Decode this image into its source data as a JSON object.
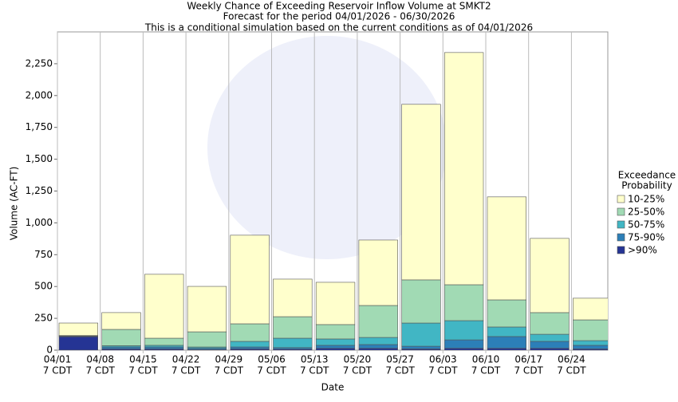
{
  "chart_data": {
    "type": "stacked_bar",
    "title": "Weekly Chance of Exceeding Reservoir Inflow Volume at SMKT2",
    "subtitle": [
      "Forecast for the period 04/01/2026 - 06/30/2026",
      "This is a conditional simulation based on the current conditions as of 04/01/2026"
    ],
    "xlabel": "Date",
    "ylabel": "Volume (AC-FT)",
    "categories": [
      "04/01",
      "04/08",
      "04/15",
      "04/22",
      "04/29",
      "05/06",
      "05/13",
      "05/20",
      "05/27",
      "06/03",
      "06/10",
      "06/17",
      "06/24"
    ],
    "category_sublabel": "7 CDT",
    "legend_title": [
      "Exceedance",
      "Probability"
    ],
    "series": [
      {
        "name": ">90%",
        "color": "#253494",
        "values": [
          105,
          10,
          10,
          5,
          10,
          8,
          15,
          15,
          10,
          15,
          15,
          15,
          10
        ]
      },
      {
        "name": "75-90%",
        "color": "#2c7fb8",
        "values": [
          5,
          15,
          15,
          10,
          15,
          12,
          23,
          29,
          21,
          66,
          92,
          54,
          28
        ]
      },
      {
        "name": "50-75%",
        "color": "#41b6c4",
        "values": [
          3,
          10,
          13,
          10,
          44,
          74,
          50,
          56,
          182,
          151,
          75,
          56,
          37
        ]
      },
      {
        "name": "25-50%",
        "color": "#a1dab4",
        "values": [
          2,
          128,
          56,
          119,
          138,
          169,
          113,
          251,
          339,
          282,
          213,
          170,
          163
        ]
      },
      {
        "name": "10-25%",
        "color": "#ffffcc",
        "values": [
          98,
          132,
          502,
          357,
          696,
          295,
          332,
          514,
          1379,
          1824,
          809,
          583,
          170
        ]
      }
    ],
    "ylim": [
      0,
      2500
    ],
    "yticks": [
      0,
      250,
      500,
      750,
      {
        "value": 1000,
        "label": "1,000"
      },
      {
        "value": 1250,
        "label": "1,250"
      },
      {
        "value": 1500,
        "label": "1,500"
      },
      {
        "value": 1750,
        "label": "1,750"
      },
      {
        "value": 2000,
        "label": "2,000"
      },
      {
        "value": 2250,
        "label": "2,250"
      }
    ]
  }
}
